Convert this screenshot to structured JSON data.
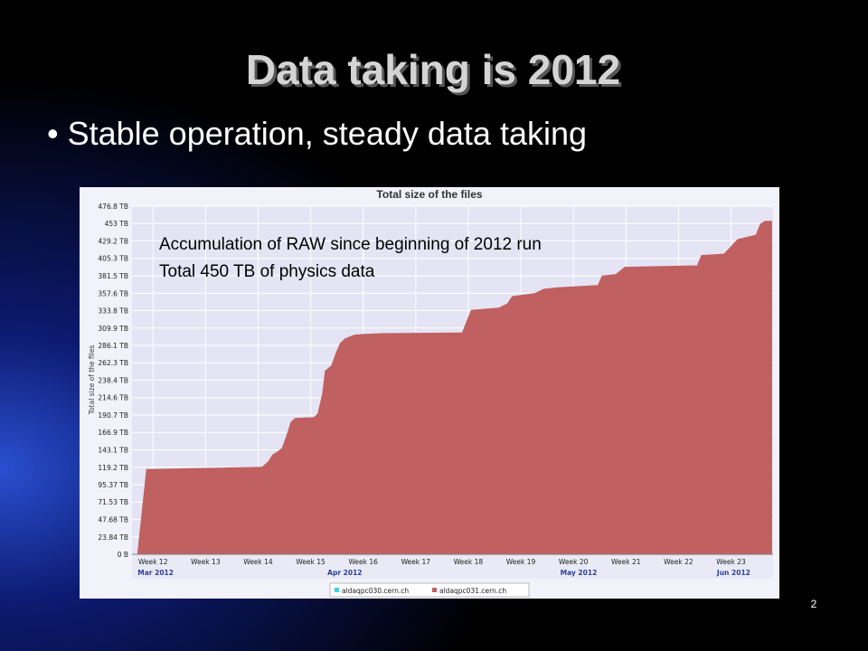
{
  "slide": {
    "title": "Data taking is 2012",
    "bullet": "• Stable operation, steady data taking",
    "page_number": "2"
  },
  "chart_data": {
    "type": "area",
    "title": "Total size of the files",
    "ylabel": "Total size of the files",
    "annotations": [
      "Accumulation of RAW since beginning of 2012 run",
      "Total 450 TB of physics data"
    ],
    "xlim": [
      12.1,
      24.3
    ],
    "ylim": [
      0,
      476.8
    ],
    "xticks": [
      {
        "value": 12.5,
        "label": "Week 12"
      },
      {
        "value": 13.5,
        "label": "Week 13"
      },
      {
        "value": 14.5,
        "label": "Week 14"
      },
      {
        "value": 15.5,
        "label": "Week 15"
      },
      {
        "value": 16.5,
        "label": "Week 16"
      },
      {
        "value": 17.5,
        "label": "Week 17"
      },
      {
        "value": 18.5,
        "label": "Week 18"
      },
      {
        "value": 19.5,
        "label": "Week 19"
      },
      {
        "value": 20.5,
        "label": "Week 20"
      },
      {
        "value": 21.5,
        "label": "Week 21"
      },
      {
        "value": 22.5,
        "label": "Week 22"
      },
      {
        "value": 23.5,
        "label": "Week 23"
      }
    ],
    "months": [
      {
        "value": 12.55,
        "label": "Mar 2012"
      },
      {
        "value": 16.15,
        "label": "Apr 2012"
      },
      {
        "value": 20.6,
        "label": "May 2012"
      },
      {
        "value": 23.55,
        "label": "Jun 2012"
      }
    ],
    "yticks": [
      {
        "value": 0,
        "label": "0 B"
      },
      {
        "value": 23.84,
        "label": "23.84 TB"
      },
      {
        "value": 47.68,
        "label": "47.68 TB"
      },
      {
        "value": 71.53,
        "label": "71.53 TB"
      },
      {
        "value": 95.37,
        "label": "95.37 TB"
      },
      {
        "value": 119.2,
        "label": "119.2 TB"
      },
      {
        "value": 143.1,
        "label": "143.1 TB"
      },
      {
        "value": 166.9,
        "label": "166.9 TB"
      },
      {
        "value": 190.7,
        "label": "190.7 TB"
      },
      {
        "value": 214.6,
        "label": "214.6 TB"
      },
      {
        "value": 238.4,
        "label": "238.4 TB"
      },
      {
        "value": 262.3,
        "label": "262.3 TB"
      },
      {
        "value": 286.1,
        "label": "286.1 TB"
      },
      {
        "value": 309.9,
        "label": "309.9 TB"
      },
      {
        "value": 333.8,
        "label": "333.8 TB"
      },
      {
        "value": 357.6,
        "label": "357.6 TB"
      },
      {
        "value": 381.5,
        "label": "381.5 TB"
      },
      {
        "value": 405.3,
        "label": "405.3 TB"
      },
      {
        "value": 429.2,
        "label": "429.2 TB"
      },
      {
        "value": 453,
        "label": "453 TB"
      },
      {
        "value": 476.8,
        "label": "476.8 TB"
      }
    ],
    "grid": true,
    "series": [
      {
        "name": "aldaqpc030.cern.ch",
        "color": "#40d0e0",
        "x": [
          15.7,
          24.27
        ],
        "values": [
          2,
          2
        ]
      },
      {
        "name": "aldaqpc031.cern.ch",
        "color": "#c06060",
        "x": [
          12.21,
          12.38,
          14.58,
          14.7,
          14.78,
          14.87,
          14.96,
          15.04,
          15.13,
          15.21,
          15.56,
          15.64,
          15.73,
          15.78,
          15.9,
          15.99,
          16.07,
          16.16,
          16.33,
          16.5,
          16.85,
          18.39,
          18.48,
          18.56,
          19.08,
          19.25,
          19.34,
          19.77,
          19.94,
          20.2,
          20.97,
          21.05,
          21.31,
          21.48,
          22.86,
          22.94,
          23.37,
          23.63,
          23.98,
          24.06,
          24.15,
          24.27
        ],
        "values": [
          0,
          116,
          119,
          127,
          136,
          140,
          145,
          161,
          181,
          186,
          187,
          192,
          220,
          251,
          258,
          276,
          289,
          295,
          300,
          301,
          302,
          303,
          320,
          334,
          337,
          343,
          353,
          357,
          363,
          365,
          368,
          381,
          383,
          393,
          395,
          409,
          411,
          431,
          437,
          452,
          456,
          456
        ]
      }
    ]
  }
}
